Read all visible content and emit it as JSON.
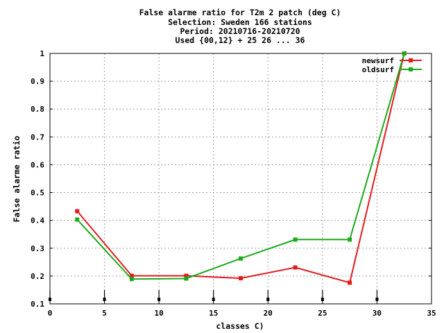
{
  "chart_data": {
    "type": "line",
    "title_lines": [
      "False alarme ratio  for T2m 2 patch (deg C)",
      "Selection: Sweden    166 stations",
      "Period: 20210716-20210720",
      "Used {00,12} + 25 26 ... 36"
    ],
    "xlabel": "classes C)",
    "ylabel": "False alarme ratio",
    "xlim": [
      0,
      35
    ],
    "ylim": [
      0.1,
      1
    ],
    "xticks": [
      "0",
      "5",
      "10",
      "15",
      "20",
      "25",
      "30",
      "35"
    ],
    "yticks": [
      "0.1",
      "0.2",
      "0.3",
      "0.4",
      "0.5",
      "0.6",
      "0.7",
      "0.8",
      "0.9",
      "1"
    ],
    "grid": true,
    "legend_position": "top-right",
    "x": [
      2.5,
      7.5,
      12.5,
      17.5,
      22.5,
      27.5,
      32.5
    ],
    "series": [
      {
        "name": "newsurf",
        "color": "#e31a1c",
        "values": [
          0.433,
          0.201,
          0.201,
          0.192,
          0.231,
          0.176,
          1.0
        ]
      },
      {
        "name": "oldsurf",
        "color": "#1aaa1a",
        "values": [
          0.403,
          0.189,
          0.191,
          0.263,
          0.331,
          0.331,
          1.0
        ]
      }
    ],
    "markers_x": [
      0,
      5,
      10,
      15,
      20,
      25,
      30
    ]
  }
}
